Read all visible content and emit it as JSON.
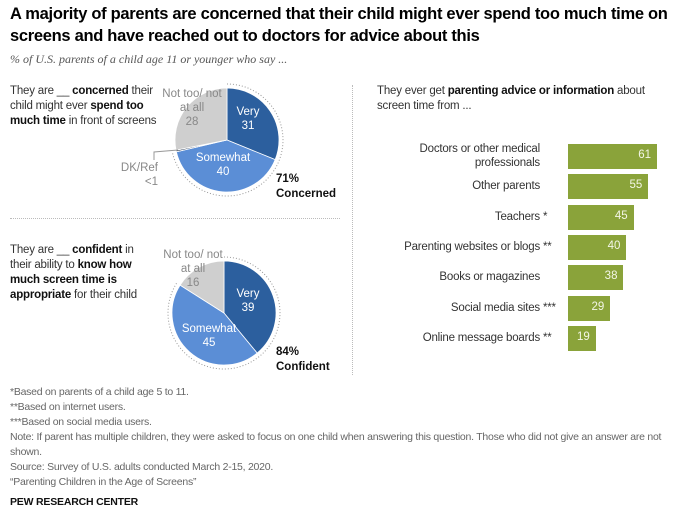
{
  "title": "A majority of parents are concerned that their child might ever spend too much time on screens and have reached out to doctors for advice about this",
  "subtitle": "% of U.S. parents of a child age 11 or younger who say ...",
  "chart_data": [
    {
      "type": "pie",
      "question": {
        "pre": "They are __ ",
        "b1": "concerned",
        "mid": " their child might ever ",
        "b2": "spend too much time",
        "post": " in front of screens"
      },
      "slices": [
        {
          "name": "Very",
          "value": 31,
          "label": "31",
          "color": "#2c5f9e"
        },
        {
          "name": "Somewhat",
          "value": 40,
          "label": "40",
          "color": "#5b8ed6"
        },
        {
          "name": "DK/Ref",
          "value": 0.5,
          "label": "<1",
          "color": "#3a4a60"
        },
        {
          "name": "Not too/ not at all",
          "value": 28,
          "label": "28",
          "color": "#cfcfcf"
        }
      ],
      "total": {
        "value": "71%",
        "label": "Concerned"
      }
    },
    {
      "type": "pie",
      "question": {
        "pre": "They are __ ",
        "b1": "confident",
        "mid": " in their ability to ",
        "b2": "know how much screen time is appropriate",
        "post": " for their child"
      },
      "slices": [
        {
          "name": "Very",
          "value": 39,
          "label": "39",
          "color": "#2c5f9e"
        },
        {
          "name": "Somewhat",
          "value": 45,
          "label": "45",
          "color": "#5b8ed6"
        },
        {
          "name": "Not too/ not at all",
          "value": 16,
          "label": "16",
          "color": "#cfcfcf"
        }
      ],
      "total": {
        "value": "84%",
        "label": "Confident"
      }
    },
    {
      "type": "bar",
      "orientation": "horizontal",
      "heading": {
        "pre": "They ever get ",
        "bold": "parenting advice or information",
        "post": " about screen time from ..."
      },
      "color": "#8aa33a",
      "categories": [
        {
          "label": "Doctors or other medical professionals",
          "stars": ""
        },
        {
          "label": "Other parents",
          "stars": ""
        },
        {
          "label": "Teachers",
          "stars": "*"
        },
        {
          "label": "Parenting websites or blogs",
          "stars": "**"
        },
        {
          "label": "Books or magazines",
          "stars": ""
        },
        {
          "label": "Social media sites",
          "stars": "***"
        },
        {
          "label": "Online message boards",
          "stars": "**"
        }
      ],
      "values": [
        61,
        55,
        45,
        40,
        38,
        29,
        19
      ]
    }
  ],
  "footnotes": [
    "*Based on parents of a child age 5 to 11.",
    "**Based on internet users.",
    "***Based on social media users.",
    "Note: If parent has multiple children, they were asked to focus on one child when answering this question. Those who did not give an answer are not shown.",
    "Source: Survey of U.S. adults conducted March 2-15, 2020.",
    "“Parenting Children in the Age of Screens”"
  ],
  "source_org": "PEW RESEARCH CENTER"
}
